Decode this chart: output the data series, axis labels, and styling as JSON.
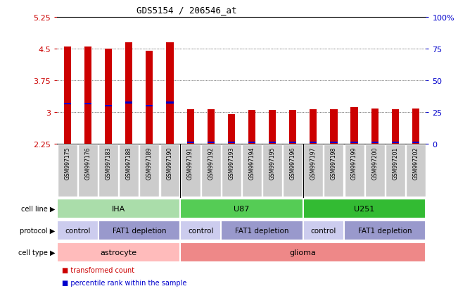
{
  "title": "GDS5154 / 206546_at",
  "samples": [
    "GSM997175",
    "GSM997176",
    "GSM997183",
    "GSM997188",
    "GSM997189",
    "GSM997190",
    "GSM997191",
    "GSM997192",
    "GSM997193",
    "GSM997194",
    "GSM997195",
    "GSM997196",
    "GSM997197",
    "GSM997198",
    "GSM997199",
    "GSM997200",
    "GSM997201",
    "GSM997202"
  ],
  "transformed_count": [
    4.55,
    4.55,
    4.5,
    4.65,
    4.45,
    4.65,
    3.07,
    3.07,
    2.95,
    3.05,
    3.05,
    3.05,
    3.07,
    3.07,
    3.12,
    3.08,
    3.07,
    3.08
  ],
  "percentile_rank_val": [
    3.2,
    3.2,
    3.15,
    3.22,
    3.15,
    3.22,
    2.28,
    2.28,
    2.28,
    2.28,
    2.28,
    2.28,
    2.28,
    2.28,
    2.28,
    2.28,
    2.28,
    2.28
  ],
  "ymin": 2.25,
  "ymax": 5.25,
  "yticks": [
    2.25,
    3.0,
    3.75,
    4.5,
    5.25
  ],
  "ytick_labels": [
    "2.25",
    "3",
    "3.75",
    "4.5",
    "5.25"
  ],
  "right_ytick_pct": [
    0,
    25,
    50,
    75,
    100
  ],
  "right_ytick_labels": [
    "0",
    "25",
    "50",
    "75",
    "100%"
  ],
  "bar_color": "#cc0000",
  "blue_color": "#0000cc",
  "bar_bottom": 2.25,
  "cell_line_data": [
    {
      "label": "IHA",
      "start": 0,
      "end": 6,
      "color": "#aaddaa"
    },
    {
      "label": "U87",
      "start": 6,
      "end": 12,
      "color": "#55cc55"
    },
    {
      "label": "U251",
      "start": 12,
      "end": 18,
      "color": "#33bb33"
    }
  ],
  "protocol_data": [
    {
      "label": "control",
      "start": 0,
      "end": 2,
      "color": "#ccccee"
    },
    {
      "label": "FAT1 depletion",
      "start": 2,
      "end": 6,
      "color": "#9999cc"
    },
    {
      "label": "control",
      "start": 6,
      "end": 8,
      "color": "#ccccee"
    },
    {
      "label": "FAT1 depletion",
      "start": 8,
      "end": 12,
      "color": "#9999cc"
    },
    {
      "label": "control",
      "start": 12,
      "end": 14,
      "color": "#ccccee"
    },
    {
      "label": "FAT1 depletion",
      "start": 14,
      "end": 18,
      "color": "#9999cc"
    }
  ],
  "cell_type_data": [
    {
      "label": "astrocyte",
      "start": 0,
      "end": 6,
      "color": "#ffbbbb"
    },
    {
      "label": "glioma",
      "start": 6,
      "end": 18,
      "color": "#ee8888"
    }
  ],
  "legend_items": [
    {
      "label": "transformed count",
      "color": "#cc0000"
    },
    {
      "label": "percentile rank within the sample",
      "color": "#0000cc"
    }
  ],
  "axis_color_left": "#cc0000",
  "axis_color_right": "#0000cc",
  "background_color": "#ffffff",
  "plot_bg_color": "#ffffff",
  "label_bg_color": "#cccccc",
  "group_sep_cols": [
    5.5,
    11.5
  ]
}
